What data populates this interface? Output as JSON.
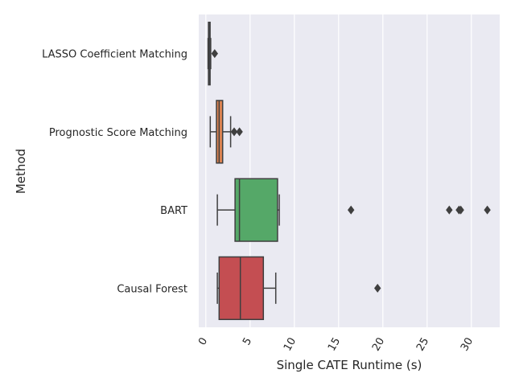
{
  "chart_data": {
    "type": "boxplot",
    "orientation": "horizontal",
    "xlabel": "Single CATE Runtime (s)",
    "ylabel": "Method",
    "xlim": [
      -0.8,
      33.2
    ],
    "xticks": [
      0,
      5,
      10,
      15,
      20,
      25,
      30
    ],
    "xtick_labels": [
      "0",
      "5",
      "10",
      "15",
      "20",
      "25",
      "30"
    ],
    "grid": true,
    "categories": [
      "LASSO Coefficient Matching",
      "Prognostic Score Matching",
      "BART",
      "Causal Forest"
    ],
    "colors": {
      "background": "#EAEAF2",
      "grid": "#FFFFFF",
      "line": "#3F3F3F",
      "boxes": [
        "#4C72B0",
        "#DD8452",
        "#55A868",
        "#C44E52"
      ]
    },
    "series": [
      {
        "category": "LASSO Coefficient Matching",
        "whisker_low": 0.25,
        "q1": 0.3,
        "median": 0.35,
        "q3": 0.4,
        "whisker_high": 0.55,
        "outliers": [
          1.0
        ]
      },
      {
        "category": "Prognostic Score Matching",
        "whisker_low": 0.5,
        "q1": 1.2,
        "median": 1.5,
        "q3": 1.9,
        "whisker_high": 2.8,
        "outliers": [
          3.2,
          3.8
        ]
      },
      {
        "category": "BART",
        "whisker_low": 1.3,
        "q1": 3.3,
        "median": 3.8,
        "q3": 8.1,
        "whisker_high": 8.3,
        "outliers": [
          16.4,
          27.5,
          28.6,
          28.8,
          31.8
        ]
      },
      {
        "category": "Causal Forest",
        "whisker_low": 1.3,
        "q1": 1.5,
        "median": 3.9,
        "q3": 6.5,
        "whisker_high": 7.9,
        "outliers": [
          19.4
        ]
      }
    ]
  }
}
